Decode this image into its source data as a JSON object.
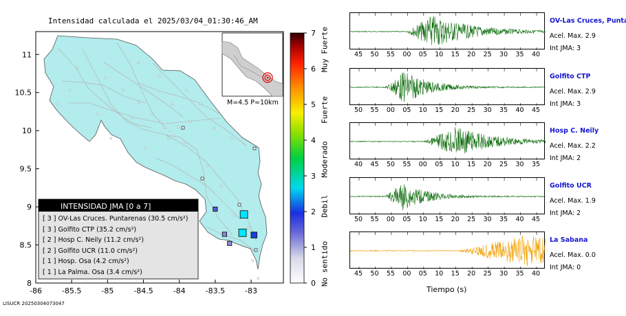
{
  "title": "Intensidad calculada el 2025/03/04_01:30:46_AM",
  "footer": "LISUCR 20250304073047",
  "map": {
    "x_ticks": [
      "-86",
      "-85.5",
      "-85",
      "-84.5",
      "-84",
      "-83.5",
      "-83"
    ],
    "y_ticks": [
      "8",
      "8.5",
      "9",
      "9.5",
      "10",
      "10.5",
      "11"
    ],
    "x_range": [
      -86.0,
      -82.55
    ],
    "y_range": [
      8.0,
      11.3
    ],
    "land_color": "#b2ecec",
    "inset_label": "M=4.5 P=10km",
    "markers": [
      {
        "lon": -83.1,
        "lat": 8.9,
        "intensity": 3,
        "color": "#00e5ff"
      },
      {
        "lon": -83.12,
        "lat": 8.66,
        "intensity": 3,
        "color": "#00e5ff"
      },
      {
        "lon": -82.96,
        "lat": 8.63,
        "intensity": 2,
        "color": "#1a3fd6"
      },
      {
        "lon": -83.5,
        "lat": 8.97,
        "intensity": 1,
        "color": "#5a5ad0"
      },
      {
        "lon": -83.37,
        "lat": 8.64,
        "intensity": 1,
        "color": "#8a8ad8"
      },
      {
        "lon": -83.3,
        "lat": 8.52,
        "intensity": 1,
        "color": "#8a8ad8"
      }
    ]
  },
  "legend": {
    "header": "INTENSIDAD JMA [0 a 7]",
    "rows": [
      {
        "level": "[ 3 ]",
        "name": "OV-Las Cruces. Puntarenas",
        "value": "(30.5 cm/s²)"
      },
      {
        "level": "[ 3 ]",
        "name": "Golfito CTP",
        "value": "(35.2 cm/s²)"
      },
      {
        "level": "[ 2 ]",
        "name": "Hosp C. Neily",
        "value": "(11.2 cm/s²)"
      },
      {
        "level": "[ 2 ]",
        "name": "Golfito UCR",
        "value": "(11.0 cm/s²)"
      },
      {
        "level": "[ 1 ]",
        "name": "Hosp. Osa",
        "value": "(4.2 cm/s²)"
      },
      {
        "level": "[ 1 ]",
        "name": "La Palma. Osa",
        "value": "(3.4 cm/s²)"
      }
    ]
  },
  "colorbar": {
    "ticks": [
      "0",
      "1",
      "2",
      "3",
      "4",
      "5",
      "6",
      "7"
    ],
    "labels": [
      "No sentido",
      "Debil",
      "Moderado",
      "Fuerte",
      "Muy Fuerte"
    ]
  },
  "stations": [
    {
      "name": "OV-Las Cruces, Puntar",
      "acel": "Acel. Max. 2.9",
      "int": "Int JMA: 3",
      "color": "#0b6b0b",
      "ticks": [
        "45",
        "50",
        "55",
        "00",
        "05",
        "10",
        "15",
        "20",
        "25",
        "30",
        "35",
        "40"
      ],
      "amp": 1.0,
      "onset": 0.29,
      "peak": 0.42,
      "decay": 0.2
    },
    {
      "name": "Golfito CTP",
      "acel": "Acel. Max. 2.9",
      "int": "Int JMA: 3",
      "color": "#0b6b0b",
      "ticks": [
        "50",
        "55",
        "00",
        "05",
        "10",
        "15",
        "20",
        "25",
        "30",
        "35",
        "40",
        "45"
      ],
      "amp": 1.0,
      "onset": 0.18,
      "peak": 0.28,
      "decay": 0.12
    },
    {
      "name": "Hosp C. Neily",
      "acel": "Acel. Max. 2.2",
      "int": "Int JMA: 2",
      "color": "#0b6b0b",
      "ticks": [
        "40",
        "45",
        "50",
        "55",
        "00",
        "05",
        "10",
        "15",
        "20",
        "25",
        "30",
        "35"
      ],
      "amp": 0.9,
      "onset": 0.38,
      "peak": 0.55,
      "decay": 0.18
    },
    {
      "name": "Golfito UCR",
      "acel": "Acel. Max. 1.9",
      "int": "Int JMA: 2",
      "color": "#0b6b0b",
      "ticks": [
        "50",
        "55",
        "00",
        "05",
        "10",
        "15",
        "20",
        "25",
        "30",
        "35",
        "40",
        "45"
      ],
      "amp": 0.85,
      "onset": 0.18,
      "peak": 0.27,
      "decay": 0.12
    },
    {
      "name": "La Sabana",
      "acel": "Acel. Max. 0.0",
      "int": "Int JMA: 0",
      "color": "#f0a000",
      "ticks": [
        "45",
        "50",
        "55",
        "00",
        "05",
        "10",
        "15",
        "20",
        "25",
        "30",
        "35",
        "40"
      ],
      "amp": 0.95,
      "onset": 0.55,
      "peak": 0.9,
      "decay": 0.6
    }
  ],
  "time_label": "Tiempo (s)"
}
